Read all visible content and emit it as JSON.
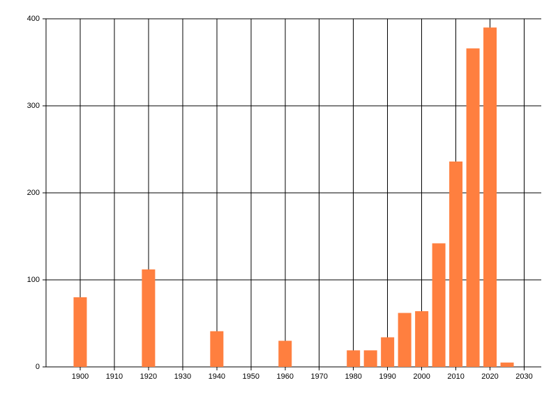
{
  "chart_data": {
    "type": "bar",
    "x": [
      1900,
      1920,
      1940,
      1960,
      1980,
      1985,
      1990,
      1995,
      2000,
      2005,
      2010,
      2015,
      2020,
      2025
    ],
    "values": [
      80,
      112,
      41,
      30,
      19,
      19,
      34,
      62,
      64,
      142,
      236,
      366,
      390,
      5
    ],
    "color": "#ff7f3f",
    "xlim": [
      1890,
      2035
    ],
    "xticks": [
      1900,
      1910,
      1920,
      1930,
      1940,
      1950,
      1960,
      1970,
      1980,
      1990,
      2000,
      2010,
      2020,
      2030
    ],
    "ylim": [
      0,
      400
    ],
    "yticks": [
      0,
      100,
      200,
      300,
      400
    ],
    "grid": true
  }
}
